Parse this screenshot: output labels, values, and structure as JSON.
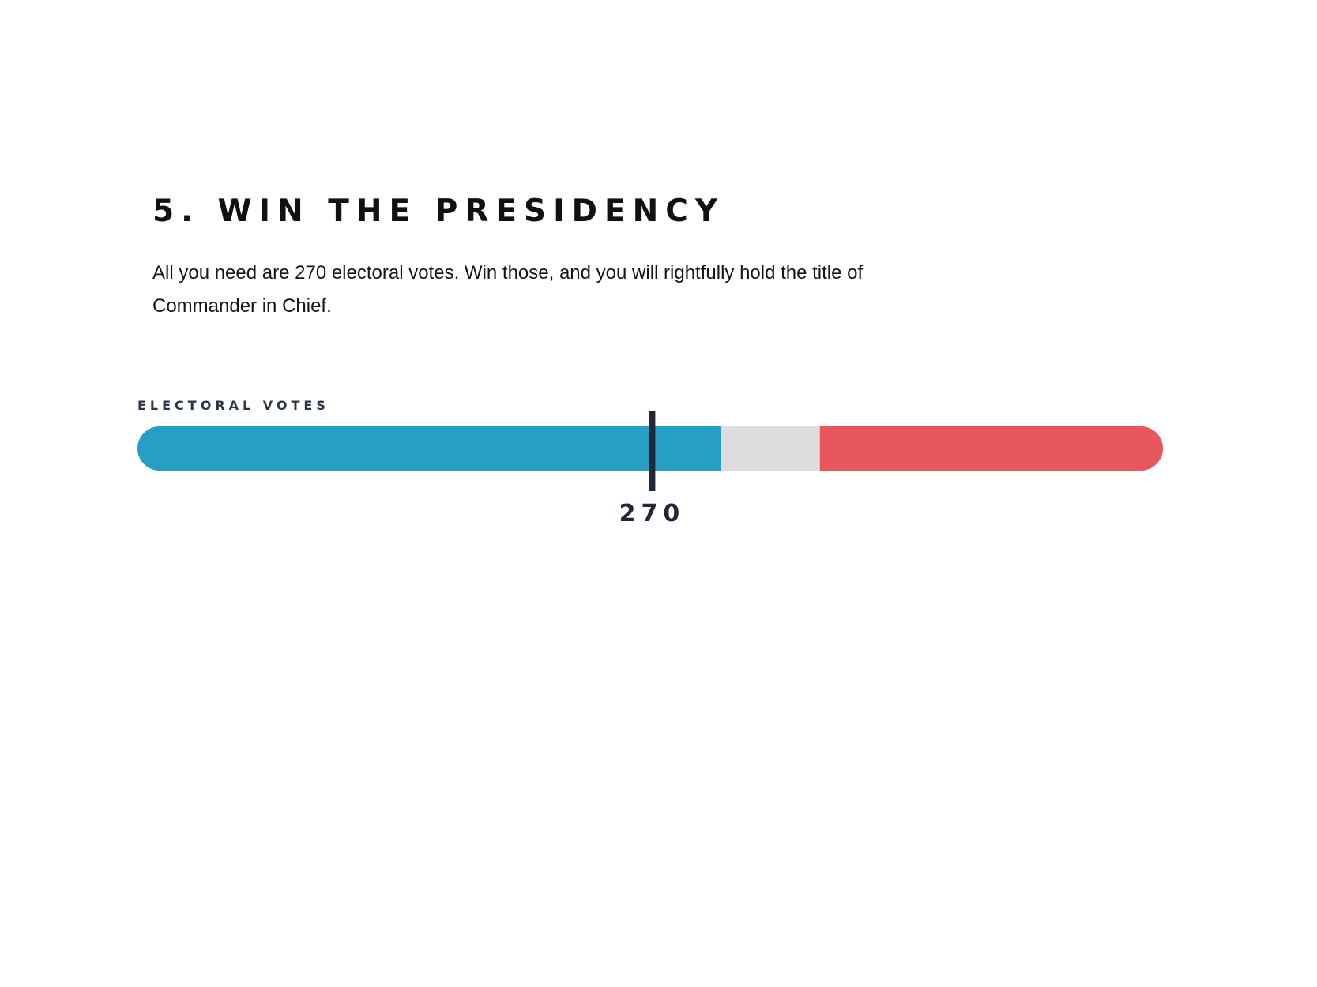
{
  "header": {
    "title": "5. WIN THE PRESIDENCY",
    "description": "All you need are 270 electoral votes. Win those, and you will rightfully hold the title of Commander in Chief."
  },
  "chart_data": {
    "type": "bar",
    "orientation": "horizontal-stacked",
    "title": "",
    "xlabel": "ELECTORAL VOTES",
    "ylabel": "",
    "xlim": [
      0,
      538
    ],
    "grid": false,
    "legend": "none",
    "series": [
      {
        "values": [
          306
        ],
        "color": "#279fc5"
      },
      {
        "values": [
          52
        ],
        "color": "#dddddd"
      },
      {
        "values": [
          180
        ],
        "color": "#e8575b"
      }
    ],
    "threshold": {
      "value": 270,
      "label": "270",
      "color": "#22283a"
    }
  }
}
